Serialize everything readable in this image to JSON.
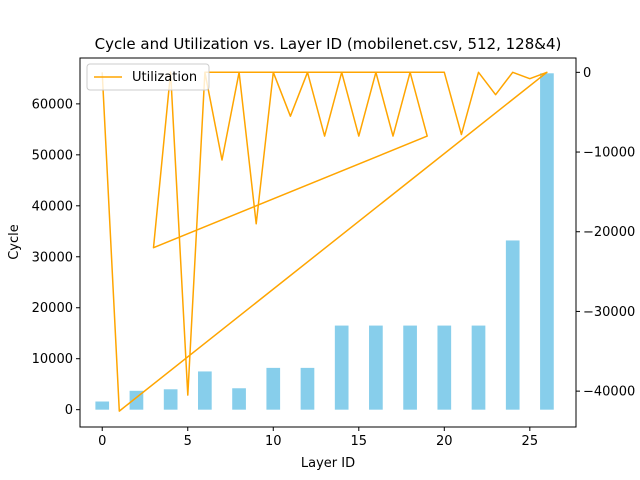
{
  "chart_data": {
    "type": "bar+line",
    "title": "Cycle and Utilization vs. Layer ID (mobilenet.csv, 512, 128&4)",
    "xlabel": "Layer ID",
    "ylabel": "Cycle",
    "xlim": [
      -1.3,
      27.7
    ],
    "ylim": [
      -3400,
      69000
    ],
    "y2lim": [
      -44500,
      1800
    ],
    "xticks": [
      0,
      5,
      10,
      15,
      20,
      25
    ],
    "yticks": [
      0,
      10000,
      20000,
      30000,
      40000,
      50000,
      60000
    ],
    "y2ticks": [
      0,
      -10000,
      -20000,
      -30000,
      -40000
    ],
    "bar_color": "#87ceeb",
    "line_color": "#ffa500",
    "bars": {
      "name": "Cycle",
      "x": [
        0,
        2,
        4,
        6,
        8,
        10,
        12,
        14,
        16,
        18,
        20,
        22,
        24,
        26
      ],
      "values": [
        1600,
        3700,
        4000,
        7500,
        4200,
        8200,
        8200,
        16500,
        16500,
        16500,
        16500,
        16500,
        33200,
        66000
      ]
    },
    "series": [
      {
        "name": "Utilization",
        "x": [
          0,
          1,
          26,
          25,
          24,
          23,
          22,
          21,
          20,
          6,
          5,
          4,
          3,
          19,
          18,
          17,
          16,
          15,
          14,
          13,
          12,
          11,
          10,
          9,
          8,
          7,
          6
        ],
        "values": [
          0,
          -42500,
          0,
          -800,
          0,
          -2800,
          0,
          -7800,
          0,
          0,
          -40500,
          0,
          -22000,
          -8000,
          0,
          -8000,
          0,
          -8000,
          0,
          -8000,
          0,
          -5500,
          0,
          -19000,
          0,
          -11000,
          0
        ]
      }
    ],
    "legend": {
      "position": "top-left",
      "entries": [
        "Utilization"
      ]
    }
  }
}
